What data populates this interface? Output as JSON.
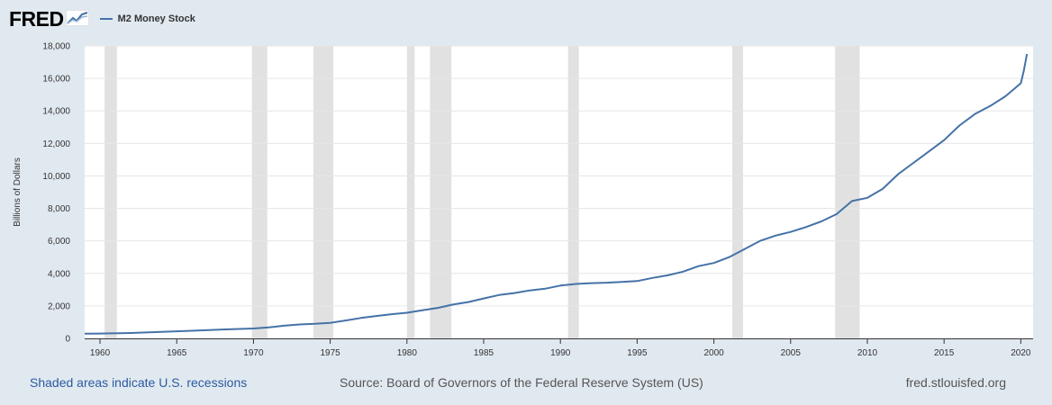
{
  "header": {
    "logo_text": "FRED",
    "logo_icon": "fred-graph-icon"
  },
  "footer": {
    "recessions_note": "Shaded areas indicate U.S. recessions",
    "source": "Source: Board of Governors of the Federal Reserve System (US)",
    "site": "fred.stlouisfed.org"
  },
  "colors": {
    "series": "#4572a7",
    "recession": "#e1e1e1",
    "background": "#e1e9f0",
    "plot": "#ffffff"
  },
  "chart_data": {
    "type": "line",
    "title": "",
    "xlabel": "",
    "ylabel": "Billions of Dollars",
    "xlim": [
      1959.0,
      2020.8
    ],
    "ylim": [
      0,
      18000
    ],
    "grid": true,
    "legend_position": "top-left",
    "x_ticks": [
      "1960",
      "1965",
      "1970",
      "1975",
      "1980",
      "1985",
      "1990",
      "1995",
      "2000",
      "2005",
      "2010",
      "2015",
      "2020"
    ],
    "y_ticks": [
      "0",
      "2,000",
      "4,000",
      "6,000",
      "8,000",
      "10,000",
      "12,000",
      "14,000",
      "16,000",
      "18,000"
    ],
    "recessions": [
      [
        1960.3,
        1961.1
      ],
      [
        1969.9,
        1970.9
      ],
      [
        1973.9,
        1975.2
      ],
      [
        1980.0,
        1980.5
      ],
      [
        1981.5,
        1982.9
      ],
      [
        1990.5,
        1991.2
      ],
      [
        2001.2,
        2001.9
      ],
      [
        2007.9,
        2009.5
      ]
    ],
    "series": [
      {
        "name": "M2 Money Stock",
        "x": [
          1959.0,
          1960.0,
          1962.0,
          1964.0,
          1966.0,
          1968.0,
          1970.0,
          1971.0,
          1972.0,
          1973.0,
          1974.0,
          1975.0,
          1976.0,
          1977.0,
          1978.0,
          1979.0,
          1980.0,
          1981.0,
          1982.0,
          1983.0,
          1984.0,
          1985.0,
          1986.0,
          1987.0,
          1988.0,
          1989.0,
          1990.0,
          1991.0,
          1992.0,
          1993.0,
          1994.0,
          1995.0,
          1996.0,
          1997.0,
          1998.0,
          1999.0,
          2000.0,
          2001.0,
          2002.0,
          2003.0,
          2004.0,
          2005.0,
          2006.0,
          2007.0,
          2008.0,
          2009.0,
          2010.0,
          2011.0,
          2012.0,
          2013.0,
          2014.0,
          2015.0,
          2016.0,
          2017.0,
          2018.0,
          2019.0,
          2020.0,
          2020.2,
          2020.4
        ],
        "values": [
          290,
          300,
          335,
          400,
          470,
          550,
          610,
          680,
          780,
          860,
          900,
          960,
          1100,
          1260,
          1380,
          1490,
          1580,
          1730,
          1880,
          2080,
          2240,
          2460,
          2670,
          2790,
          2950,
          3060,
          3250,
          3350,
          3400,
          3430,
          3480,
          3530,
          3720,
          3880,
          4110,
          4450,
          4640,
          5000,
          5500,
          6000,
          6320,
          6550,
          6850,
          7200,
          7650,
          8450,
          8650,
          9200,
          10100,
          10800,
          11500,
          12200,
          13100,
          13800,
          14300,
          14900,
          15700,
          16500,
          17500
        ]
      }
    ]
  }
}
